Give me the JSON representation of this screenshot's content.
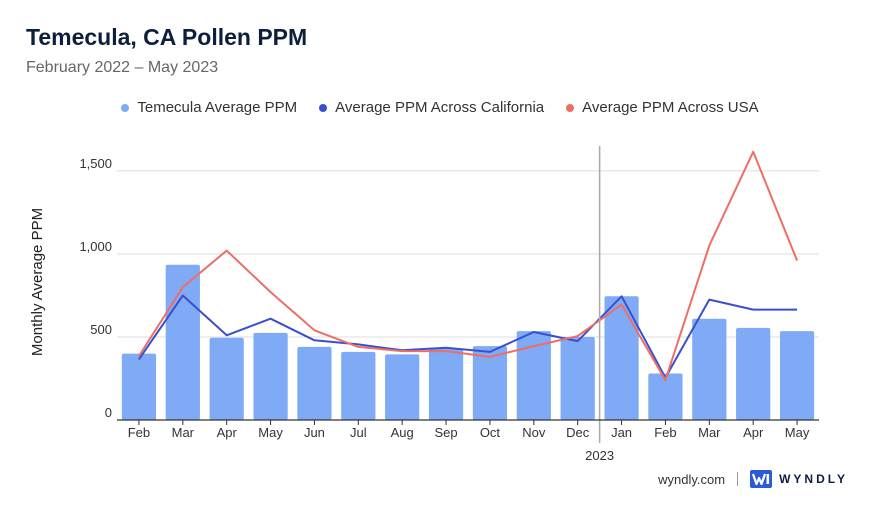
{
  "header": {
    "title": "Temecula, CA Pollen PPM",
    "subtitle": "February 2022 – May 2023"
  },
  "legend": [
    {
      "label": "Temecula Average PPM",
      "color": "#7faaf5"
    },
    {
      "label": "Average PPM Across California",
      "color": "#3a4fd0"
    },
    {
      "label": "Average PPM Across USA",
      "color": "#ee6e66"
    }
  ],
  "footer": {
    "site": "wyndly.com",
    "brand": "WYNDLY"
  },
  "chart_data": {
    "type": "bar",
    "categories": [
      "Feb",
      "Mar",
      "Apr",
      "May",
      "Jun",
      "Jul",
      "Aug",
      "Sep",
      "Oct",
      "Nov",
      "Dec",
      "Jan",
      "Feb",
      "Mar",
      "Apr",
      "May"
    ],
    "year_marker": {
      "label": "2023",
      "category": "Jan"
    },
    "ylabel": "Monthly Average PPM",
    "ylim": [
      0,
      1650
    ],
    "yticks": [
      0,
      500,
      1000,
      1500
    ],
    "ytick_labels": [
      "0",
      "500",
      "1,000",
      "1,500"
    ],
    "grid": true,
    "legend_position": "top",
    "series": [
      {
        "name": "Temecula Average PPM",
        "type": "bar",
        "color": "#7faaf5",
        "values": [
          400,
          935,
          495,
          525,
          440,
          410,
          395,
          430,
          445,
          535,
          500,
          745,
          280,
          610,
          555,
          535
        ]
      },
      {
        "name": "Average PPM Across California",
        "type": "line",
        "color": "#3a4fd0",
        "values": [
          365,
          750,
          510,
          610,
          480,
          455,
          420,
          435,
          410,
          530,
          475,
          745,
          255,
          725,
          665,
          665
        ]
      },
      {
        "name": "Average PPM Across USA",
        "type": "line",
        "color": "#ee6e66",
        "values": [
          385,
          800,
          1020,
          770,
          540,
          440,
          415,
          415,
          380,
          445,
          505,
          695,
          240,
          1050,
          1615,
          960
        ]
      }
    ]
  }
}
